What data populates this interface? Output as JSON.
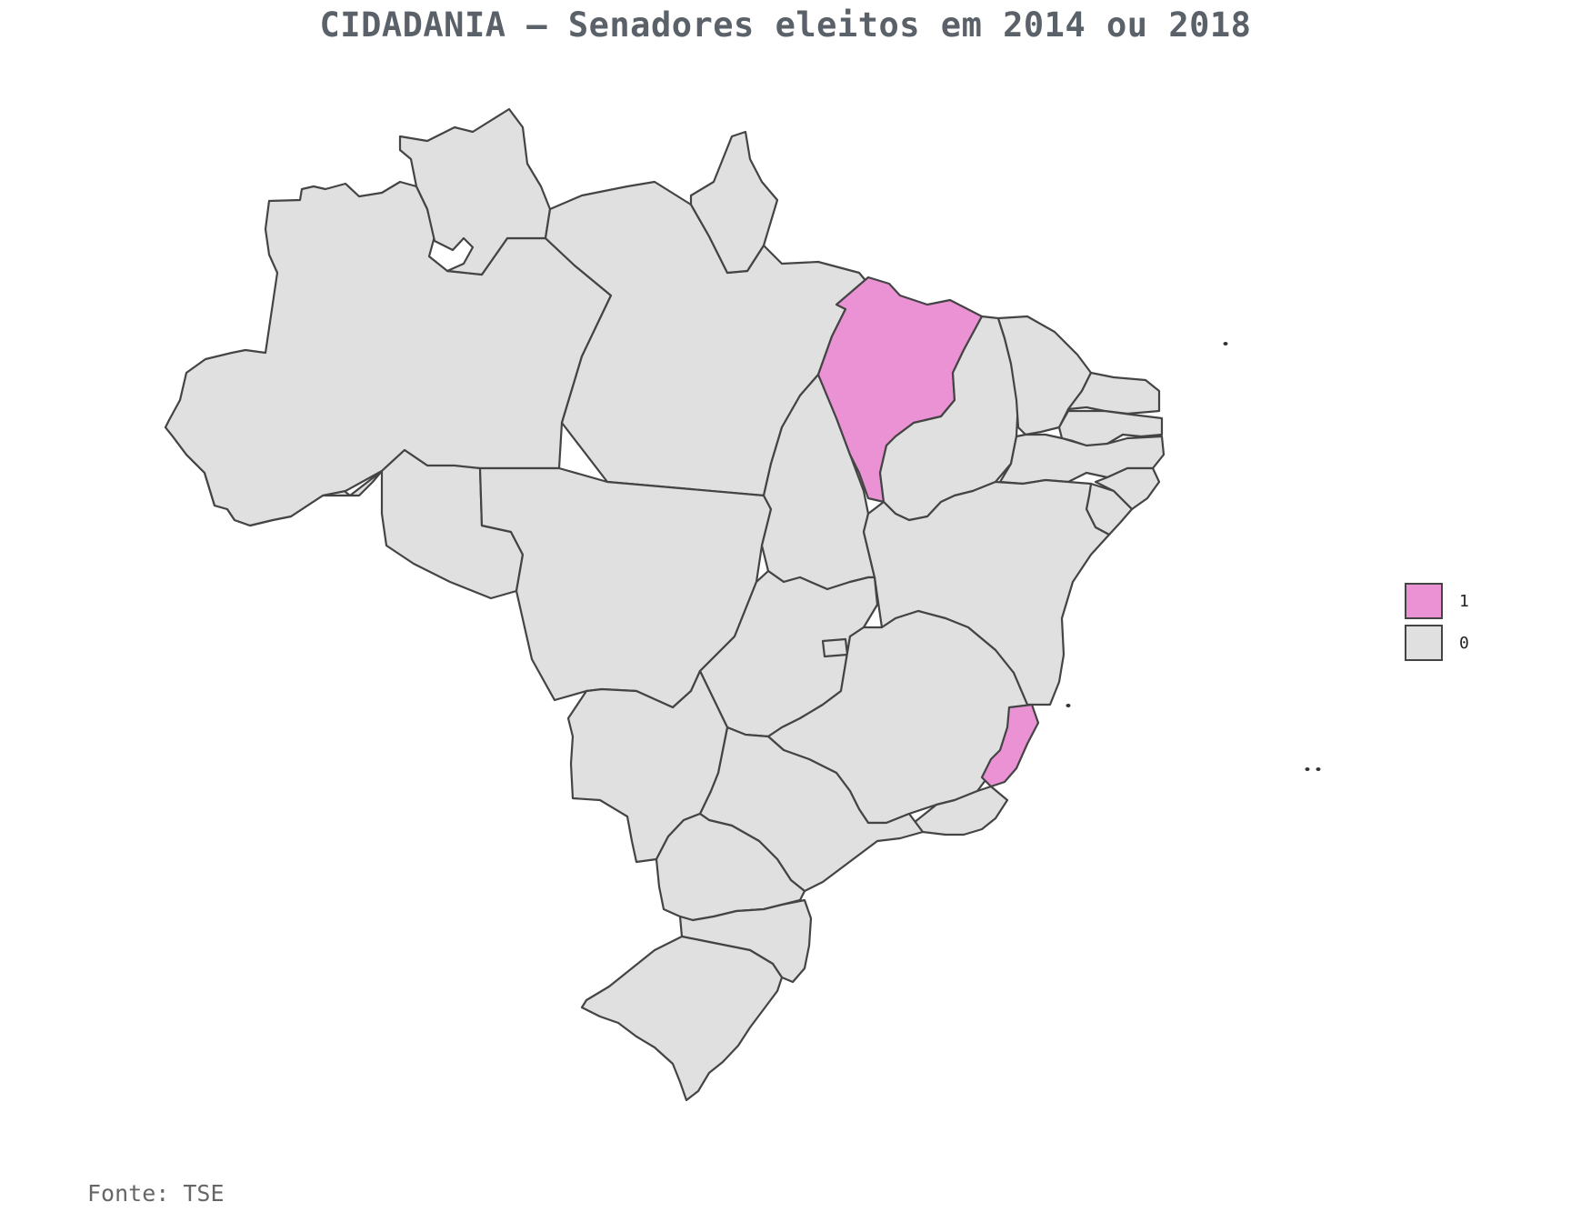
{
  "title": "CIDADANIA – Senadores eleitos em 2014 ou 2018",
  "caption": "Fonte: TSE",
  "colors": {
    "value_1": "#ea92d4",
    "value_0": "#e0e0e0",
    "border": "#444444"
  },
  "legend": [
    {
      "label": "1",
      "value": 1
    },
    {
      "label": "0",
      "value": 0
    }
  ],
  "map_data": {
    "states": [
      {
        "name": "Acre",
        "value": 0
      },
      {
        "name": "Amazonas",
        "value": 0
      },
      {
        "name": "Roraima",
        "value": 0
      },
      {
        "name": "Pará",
        "value": 0
      },
      {
        "name": "Amapá",
        "value": 0
      },
      {
        "name": "Rondônia",
        "value": 0
      },
      {
        "name": "Mato Grosso",
        "value": 0
      },
      {
        "name": "Tocantins",
        "value": 0
      },
      {
        "name": "Maranhão",
        "value": 1
      },
      {
        "name": "Piauí",
        "value": 0
      },
      {
        "name": "Ceará",
        "value": 0
      },
      {
        "name": "Rio Grande do Norte",
        "value": 0
      },
      {
        "name": "Paraíba",
        "value": 0
      },
      {
        "name": "Pernambuco",
        "value": 0
      },
      {
        "name": "Alagoas",
        "value": 0
      },
      {
        "name": "Sergipe",
        "value": 0
      },
      {
        "name": "Bahia",
        "value": 0
      },
      {
        "name": "Goiás",
        "value": 0
      },
      {
        "name": "Distrito Federal",
        "value": 0
      },
      {
        "name": "Minas Gerais",
        "value": 0
      },
      {
        "name": "Espírito Santo",
        "value": 1
      },
      {
        "name": "Rio de Janeiro",
        "value": 0
      },
      {
        "name": "São Paulo",
        "value": 0
      },
      {
        "name": "Mato Grosso do Sul",
        "value": 0
      },
      {
        "name": "Paraná",
        "value": 0
      },
      {
        "name": "Santa Catarina",
        "value": 0
      },
      {
        "name": "Rio Grande do Sul",
        "value": 0
      }
    ]
  }
}
